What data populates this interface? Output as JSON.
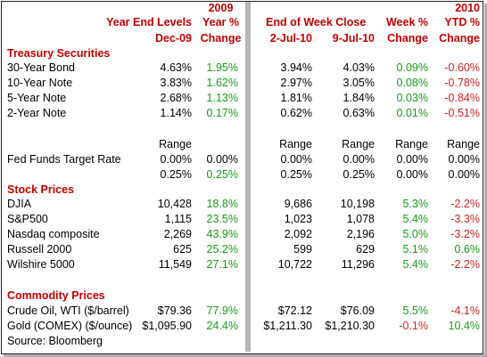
{
  "headers": {
    "year_end_levels": "Year End Levels",
    "dec09": "Dec-09",
    "y2009": "2009",
    "year_pct": "Year %",
    "change1": "Change",
    "end_of_week_close": "End of Week Close",
    "jul2": "2-Jul-10",
    "jul9": "9-Jul-10",
    "week_pct": "Week %",
    "change2": "Change",
    "y2010": "2010",
    "ytd_pct": "YTD %",
    "change3": "Change"
  },
  "sections": {
    "treasury": "Treasury Securities",
    "stocks": "Stock Prices",
    "commodities": "Commodity Prices"
  },
  "treasury_rows": [
    {
      "label": "30-Year Bond",
      "dec09": "4.63%",
      "year_chg": "1.95%",
      "jul2": "3.94%",
      "jul9": "4.03%",
      "week_chg": "0.09%",
      "ytd_chg": "-0.60%"
    },
    {
      "label": "10-Year Note",
      "dec09": "3.83%",
      "year_chg": "1.62%",
      "jul2": "2.97%",
      "jul9": "3.05%",
      "week_chg": "0.08%",
      "ytd_chg": "-0.78%"
    },
    {
      "label": "5-Year Note",
      "dec09": "2.68%",
      "year_chg": "1.13%",
      "jul2": "1.81%",
      "jul9": "1.84%",
      "week_chg": "0.03%",
      "ytd_chg": "-0.84%"
    },
    {
      "label": "2-Year Note",
      "dec09": "1.14%",
      "year_chg": "0.17%",
      "jul2": "0.62%",
      "jul9": "0.63%",
      "week_chg": "0.01%",
      "ytd_chg": "-0.51%"
    }
  ],
  "fed_funds": {
    "range_label": "Range",
    "label": "Fed Funds Target Rate",
    "low": {
      "dec09": "0.00%",
      "year_chg": "0.00%",
      "jul2": "0.00%",
      "jul9": "0.00%",
      "week_chg": "0.00%",
      "ytd_chg": "0.00%"
    },
    "high": {
      "dec09": "0.25%",
      "year_chg": "0.25%",
      "jul2": "0.25%",
      "jul9": "0.25%",
      "week_chg": "0.00%",
      "ytd_chg": "0.00%"
    }
  },
  "stock_rows": [
    {
      "label": "DJIA",
      "dec09": "10,428",
      "year_chg": "18.8%",
      "jul2": "9,686",
      "jul9": "10,198",
      "week_chg": "5.3%",
      "ytd_chg": "-2.2%"
    },
    {
      "label": "S&P500",
      "dec09": "1,115",
      "year_chg": "23.5%",
      "jul2": "1,023",
      "jul9": "1,078",
      "week_chg": "5.4%",
      "ytd_chg": "-3.3%"
    },
    {
      "label": "Nasdaq composite",
      "dec09": "2,269",
      "year_chg": "43.9%",
      "jul2": "2,092",
      "jul9": "2,196",
      "week_chg": "5.0%",
      "ytd_chg": "-3.2%"
    },
    {
      "label": "Russell 2000",
      "dec09": "625",
      "year_chg": "25.2%",
      "jul2": "599",
      "jul9": "629",
      "week_chg": "5.1%",
      "ytd_chg": "0.6%"
    },
    {
      "label": "Wilshire 5000",
      "dec09": "11,549",
      "year_chg": "27.1%",
      "jul2": "10,722",
      "jul9": "11,296",
      "week_chg": "5.4%",
      "ytd_chg": "-2.2%"
    }
  ],
  "commodity_rows": [
    {
      "label": "Crude Oil, WTI ($/barrel)",
      "dec09": "$79.36",
      "year_chg": "77.9%",
      "jul2": "$72.12",
      "jul9": "$76.09",
      "week_chg": "5.5%",
      "ytd_chg": "-4.1%"
    },
    {
      "label": "Gold (COMEX) ($/ounce)",
      "dec09": "$1,095.90",
      "year_chg": "24.4%",
      "jul2": "$1,211.30",
      "jul9": "$1,210.30",
      "week_chg": "-0.1%",
      "ytd_chg": "10.4%"
    }
  ],
  "source": "Source: Bloomberg",
  "colors": {
    "header_red": "#c00000",
    "positive_green": "#1a9a1a",
    "negative_red": "#cc2222"
  }
}
